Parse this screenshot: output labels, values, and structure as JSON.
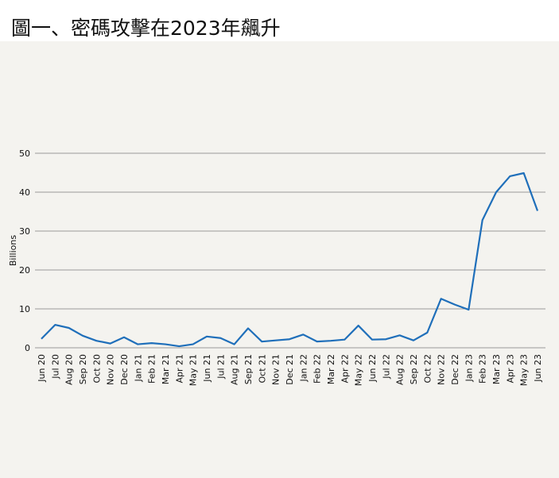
{
  "title": "圖一、密碼攻擊在2023年飆升",
  "chart_data": {
    "type": "line",
    "title": "圖一、密碼攻擊在2023年飆升",
    "xlabel": "",
    "ylabel": "Billions",
    "ylim": [
      0,
      50
    ],
    "yticks": [
      0,
      10,
      20,
      30,
      40,
      50
    ],
    "grid": true,
    "line_color": "#1f6fba",
    "categories": [
      "Jun 20",
      "Jul 20",
      "Aug 20",
      "Sep 20",
      "Oct 20",
      "Nov 20",
      "Dec 20",
      "Jan 21",
      "Feb 21",
      "Mar 21",
      "Apr 21",
      "May 21",
      "Jun 21",
      "Jul 21",
      "Aug 21",
      "Sep 21",
      "Oct 21",
      "Nov 21",
      "Dec 21",
      "Jan 22",
      "Feb 22",
      "Mar 22",
      "Apr 22",
      "May 22",
      "Jun 22",
      "Jul 22",
      "Aug 22",
      "Sep 22",
      "Oct 22",
      "Nov 22",
      "Dec 22",
      "Jan 23",
      "Feb 23",
      "Mar 23",
      "Apr 23",
      "May 23",
      "Jun 23"
    ],
    "values": [
      2.3,
      5.9,
      5.1,
      3.1,
      1.8,
      1.1,
      2.7,
      0.9,
      1.2,
      0.9,
      0.4,
      0.9,
      2.9,
      2.5,
      0.9,
      5.0,
      1.6,
      1.9,
      2.2,
      3.4,
      1.6,
      1.8,
      2.1,
      5.7,
      2.1,
      2.2,
      3.2,
      1.9,
      3.9,
      12.6,
      11.1,
      9.8,
      32.8,
      40.0,
      44.1,
      44.9,
      35.2
    ]
  }
}
